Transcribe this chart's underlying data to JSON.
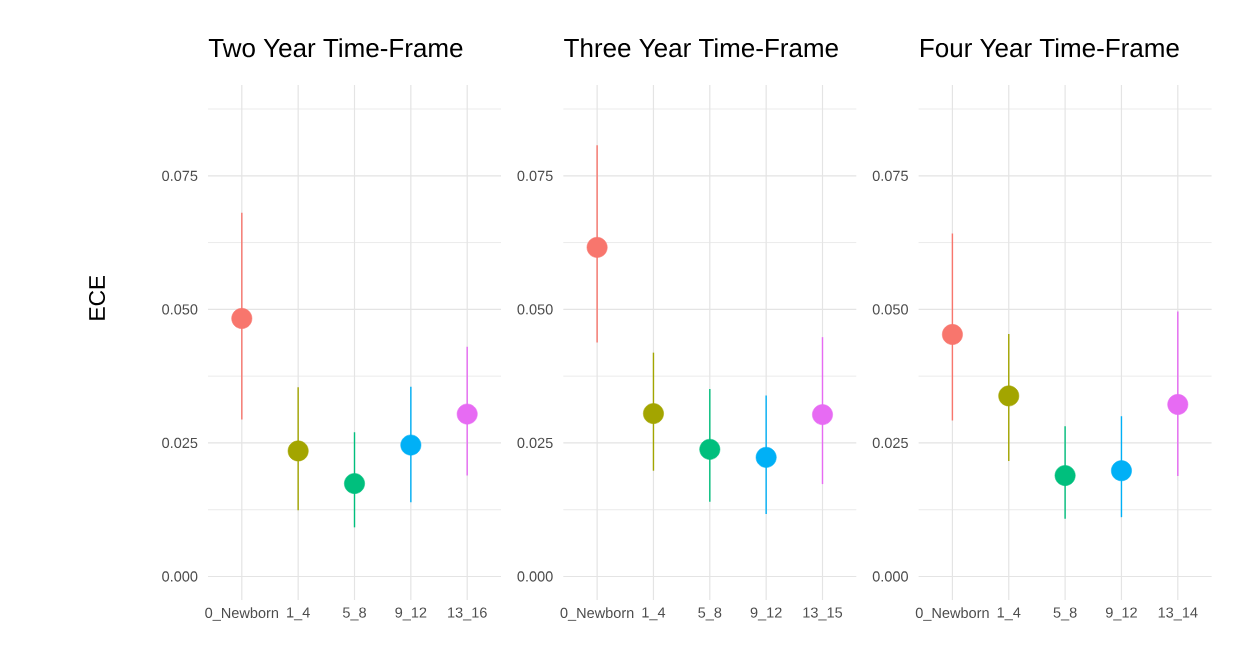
{
  "chart_data": [
    {
      "type": "scatter",
      "title": "Two Year Time-Frame",
      "ylabel": "ECE",
      "categories": [
        "0_Newborn",
        "1_4",
        "5_8",
        "9_12",
        "13_16"
      ],
      "values": [
        0.0483,
        0.0235,
        0.0174,
        0.0246,
        0.0304
      ],
      "errors": [
        [
          0.0294,
          0.0681
        ],
        [
          0.0124,
          0.0354
        ],
        [
          0.0092,
          0.027
        ],
        [
          0.0139,
          0.0355
        ],
        [
          0.0189,
          0.043
        ]
      ],
      "colors": [
        "#f8766d",
        "#a3a500",
        "#00bf7d",
        "#00b0f6",
        "#e76bf3"
      ],
      "marker": "circle",
      "ylim": [
        -0.0044,
        0.092
      ],
      "yticks": [
        {
          "value": 0,
          "label": "0.000"
        },
        {
          "value": 0.0125,
          "label": null
        },
        {
          "value": 0.025,
          "label": "0.025"
        },
        {
          "value": 0.0375,
          "label": null
        },
        {
          "value": 0.05,
          "label": "0.050"
        },
        {
          "value": 0.0625,
          "label": null
        },
        {
          "value": 0.075,
          "label": "0.075"
        },
        {
          "value": 0.0875,
          "label": null
        }
      ],
      "grid": true
    },
    {
      "type": "scatter",
      "title": "Three Year Time-Frame",
      "categories": [
        "0_Newborn",
        "1_4",
        "5_8",
        "9_12",
        "13_15"
      ],
      "values": [
        0.0616,
        0.0305,
        0.0238,
        0.0223,
        0.0303
      ],
      "errors": [
        [
          0.0438,
          0.0807
        ],
        [
          0.0198,
          0.0419
        ],
        [
          0.014,
          0.0351
        ],
        [
          0.0117,
          0.0339
        ],
        [
          0.0173,
          0.0448
        ]
      ],
      "colors": [
        "#f8766d",
        "#a3a500",
        "#00bf7d",
        "#00b0f6",
        "#e76bf3"
      ],
      "marker": "circle",
      "ylim": [
        -0.0044,
        0.092
      ],
      "yticks": [
        {
          "value": 0,
          "label": "0.000"
        },
        {
          "value": 0.0125,
          "label": null
        },
        {
          "value": 0.025,
          "label": "0.025"
        },
        {
          "value": 0.0375,
          "label": null
        },
        {
          "value": 0.05,
          "label": "0.050"
        },
        {
          "value": 0.0625,
          "label": null
        },
        {
          "value": 0.075,
          "label": "0.075"
        },
        {
          "value": 0.0875,
          "label": null
        }
      ],
      "grid": true
    },
    {
      "type": "scatter",
      "title": "Four Year Time-Frame",
      "categories": [
        "0_Newborn",
        "1_4",
        "5_8",
        "9_12",
        "13_14"
      ],
      "values": [
        0.0453,
        0.0338,
        0.0189,
        0.0198,
        0.0322
      ],
      "errors": [
        [
          0.0292,
          0.0642
        ],
        [
          0.0216,
          0.0454
        ],
        [
          0.0108,
          0.0281
        ],
        [
          0.0111,
          0.03
        ],
        [
          0.0188,
          0.0496
        ]
      ],
      "colors": [
        "#f8766d",
        "#a3a500",
        "#00bf7d",
        "#00b0f6",
        "#e76bf3"
      ],
      "marker": "circle",
      "ylim": [
        -0.0044,
        0.092
      ],
      "yticks": [
        {
          "value": 0,
          "label": "0.000"
        },
        {
          "value": 0.0125,
          "label": null
        },
        {
          "value": 0.025,
          "label": "0.025"
        },
        {
          "value": 0.0375,
          "label": null
        },
        {
          "value": 0.05,
          "label": "0.050"
        },
        {
          "value": 0.0625,
          "label": null
        },
        {
          "value": 0.075,
          "label": "0.075"
        },
        {
          "value": 0.0875,
          "label": null
        }
      ],
      "grid": true
    }
  ]
}
